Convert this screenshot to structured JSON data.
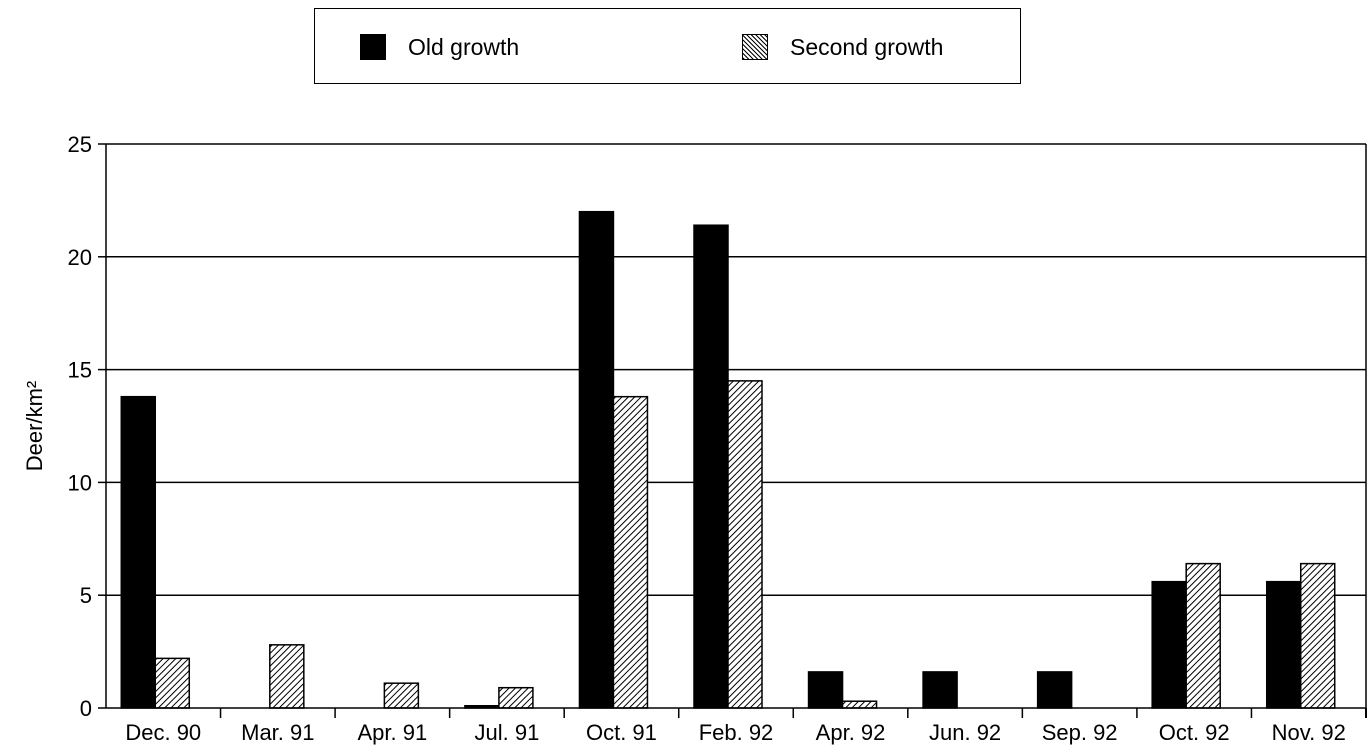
{
  "chart_data": {
    "type": "bar",
    "title": "",
    "xlabel": "",
    "ylabel": "Deer/km²",
    "ylim": [
      0,
      25
    ],
    "yticks": [
      "0",
      "5",
      "10",
      "15",
      "20",
      "25"
    ],
    "grid": true,
    "legend_position": "top",
    "categories": [
      "Dec. 90",
      "Mar. 91",
      "Apr. 91",
      "Jul. 91",
      "Oct. 91",
      "Feb. 92",
      "Apr. 92",
      "Jun. 92",
      "Sep. 92",
      "Oct. 92",
      "Nov. 92"
    ],
    "series": [
      {
        "name": "Old growth",
        "color": "#000000",
        "pattern": "solid",
        "values": [
          13.8,
          0,
          0,
          0.1,
          22.0,
          21.4,
          1.6,
          1.6,
          1.6,
          5.6,
          5.6
        ]
      },
      {
        "name": "Second growth",
        "color": "#000000",
        "pattern": "diagonal-hatch",
        "values": [
          2.2,
          2.8,
          1.1,
          0.9,
          13.8,
          14.5,
          0.3,
          0,
          0,
          6.4,
          6.4
        ]
      }
    ]
  }
}
